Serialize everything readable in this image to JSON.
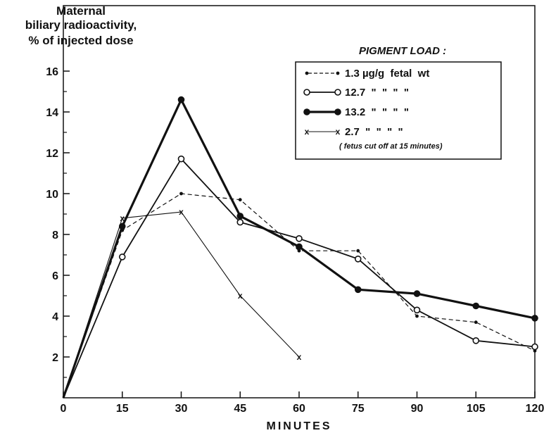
{
  "chart_data": {
    "type": "line",
    "ylabel_lines": [
      "Maternal",
      "biliary radioactivity,",
      "% of injected dose"
    ],
    "xlabel": "MINUTES",
    "xlim": [
      0,
      120
    ],
    "ylim": [
      0,
      17
    ],
    "x_ticks": [
      "0",
      "15",
      "30",
      "45",
      "60",
      "75",
      "90",
      "105",
      "120"
    ],
    "y_ticks": [
      "2",
      "4",
      "6",
      "8",
      "10",
      "12",
      "14",
      "16"
    ],
    "legend_title": "PIGMENT LOAD :",
    "legend_note": "( fetus cut off at 15 minutes)",
    "series": [
      {
        "name": "1.3 µg/g  fetal  wt",
        "style": "dashed-smalldot",
        "x": [
          0,
          15,
          30,
          45,
          60,
          75,
          90,
          105,
          120
        ],
        "y": [
          0,
          8.2,
          10.0,
          9.7,
          7.2,
          7.2,
          4.0,
          3.7,
          2.3
        ]
      },
      {
        "name": "12.7  \"  \"  \"  \"",
        "style": "solid-opencircle",
        "x": [
          0,
          15,
          30,
          45,
          60,
          75,
          90,
          105,
          120
        ],
        "y": [
          0,
          6.9,
          11.7,
          8.6,
          7.8,
          6.8,
          4.3,
          2.8,
          2.5
        ]
      },
      {
        "name": "13.2  \"  \"  \"  \"",
        "style": "thick-filledcircle",
        "x": [
          0,
          15,
          30,
          45,
          60,
          75,
          90,
          105,
          120
        ],
        "y": [
          0,
          8.4,
          14.6,
          8.9,
          7.4,
          5.3,
          5.1,
          4.5,
          3.9
        ]
      },
      {
        "name": "2.7  \"  \"  \"  \"",
        "style": "thin-x",
        "x": [
          0,
          15,
          30,
          45,
          60
        ],
        "y": [
          0,
          8.8,
          9.1,
          5.0,
          2.0
        ]
      }
    ]
  }
}
